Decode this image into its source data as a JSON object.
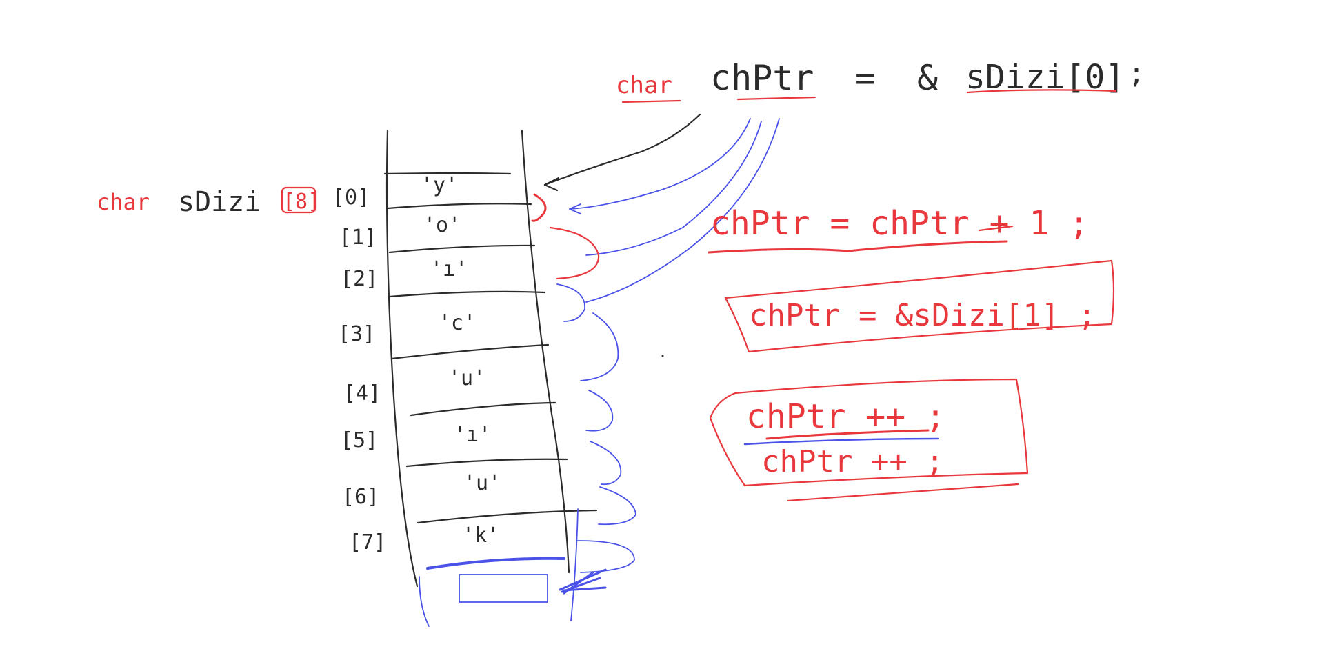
{
  "colors": {
    "background": "#ffffff",
    "ink_black": "#2b2b2b",
    "ink_red": "#e8383d",
    "ink_blue": "#4a52e8"
  },
  "top_declaration": {
    "keyword": "char",
    "variable": "chPtr",
    "equals": "=",
    "address_of": "&",
    "target": "sDizi[0]",
    "terminator": ";"
  },
  "array_declaration": {
    "keyword": "char",
    "name": "sDizi",
    "size": "[8]"
  },
  "cells": [
    {
      "index": "[0]",
      "value": "'y'"
    },
    {
      "index": "[1]",
      "value": "'o'"
    },
    {
      "index": "[2]",
      "value": "'ı'"
    },
    {
      "index": "[3]",
      "value": "'c'"
    },
    {
      "index": "[4]",
      "value": "'u'"
    },
    {
      "index": "[5]",
      "value": "'ı'"
    },
    {
      "index": "[6]",
      "value": "'u'"
    },
    {
      "index": "[7]",
      "value": "'k'"
    }
  ],
  "statements": {
    "increment_add": "chPtr = chPtr + 1 ;",
    "address_next": "chPtr = &sDizi[1] ;",
    "post_increment_1": "chPtr ++ ;",
    "post_increment_2": "chPtr ++ ;"
  }
}
